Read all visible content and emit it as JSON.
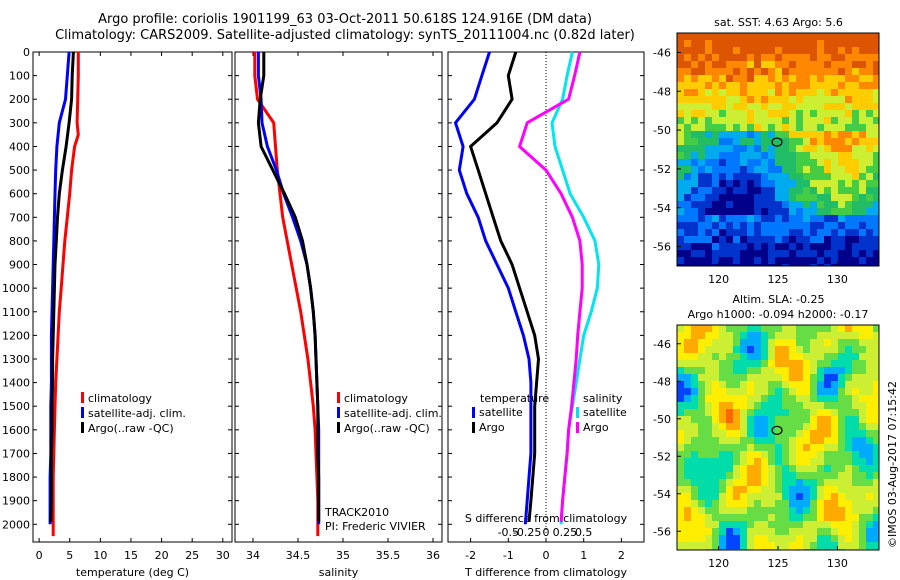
{
  "header": {
    "title_line1": "Argo profile: coriolis 1901199_63 03-Oct-2011 50.618S 124.916E (DM data)",
    "title_line2": "Climatology: CARS2009. Satellite-adjusted climatology: synTS_20111004.nc (0.82d later)"
  },
  "colors": {
    "climatology": "#ff0000",
    "satellite": "#0000ff",
    "argo": "#000000",
    "sal_satellite": "#00e5ee",
    "sal_argo": "#ff00ff"
  },
  "chart_data": [
    {
      "type": "line",
      "name": "temperature",
      "xlabel": "temperature (deg C)",
      "xlim": [
        -1,
        31.5
      ],
      "ylim": [
        2075,
        0
      ],
      "xticks": [
        "0",
        "5",
        "10",
        "15",
        "20",
        "25",
        "30"
      ],
      "yticks": [
        "0",
        "100",
        "200",
        "300",
        "400",
        "500",
        "600",
        "700",
        "800",
        "900",
        "1000",
        "1100",
        "1200",
        "1300",
        "1400",
        "1500",
        "1600",
        "1700",
        "1800",
        "1900",
        "2000"
      ],
      "legend": [
        "climatology",
        "satellite-adj. clim.",
        "Argo(..raw -QC)"
      ],
      "series": [
        {
          "name": "climatology",
          "color": "#ff0000",
          "x": [
            6.4,
            6.4,
            6.3,
            6.2,
            6.4,
            5.8,
            5.3,
            5.0,
            4.6,
            4.2,
            3.9,
            3.6,
            3.3,
            3.1,
            2.9,
            2.7,
            2.6,
            2.5,
            2.4,
            2.3,
            2.3
          ],
          "y": [
            0,
            100,
            200,
            300,
            350,
            400,
            500,
            600,
            700,
            800,
            900,
            1000,
            1100,
            1200,
            1300,
            1400,
            1500,
            1600,
            1700,
            1800,
            2050
          ]
        },
        {
          "name": "satellite-adj. clim.",
          "color": "#0000ff",
          "x": [
            4.9,
            4.6,
            4.3,
            3.3,
            2.9,
            2.7,
            2.6,
            2.5,
            2.4,
            2.3,
            2.2,
            2.1,
            2.0,
            2.0,
            2.0,
            1.9,
            1.9,
            1.9,
            1.8,
            1.8,
            1.8
          ],
          "y": [
            0,
            100,
            200,
            300,
            400,
            500,
            600,
            700,
            800,
            900,
            1000,
            1100,
            1200,
            1300,
            1400,
            1500,
            1600,
            1700,
            1800,
            1900,
            2000
          ]
        },
        {
          "name": "Argo(..raw -QC)",
          "color": "#000000",
          "x": [
            5.6,
            5.4,
            5.3,
            4.9,
            4.4,
            3.8,
            3.3,
            3.0,
            2.8,
            2.6,
            2.5,
            2.4,
            2.3,
            2.2,
            2.2,
            2.1,
            2.1,
            2.0,
            2.0,
            2.0,
            1.9
          ],
          "y": [
            0,
            100,
            200,
            300,
            400,
            500,
            600,
            700,
            800,
            900,
            1000,
            1100,
            1200,
            1300,
            1400,
            1500,
            1600,
            1700,
            1800,
            1900,
            1990
          ]
        }
      ]
    },
    {
      "type": "line",
      "name": "salinity",
      "xlabel": "salinity",
      "xlim": [
        33.8,
        36.1
      ],
      "ylim": [
        2075,
        0
      ],
      "xticks": [
        "34",
        "34.5",
        "35",
        "35.5",
        "36"
      ],
      "legend": [
        "climatology",
        "satellite-adj. clim.",
        "Argo(..raw -QC)"
      ],
      "annotation": [
        "TRACK2010",
        "PI: Frederic VIVIER"
      ],
      "series": [
        {
          "name": "climatology",
          "color": "#ff0000",
          "x": [
            34.02,
            34.02,
            34.05,
            34.23,
            34.25,
            34.27,
            34.3,
            34.33,
            34.38,
            34.43,
            34.48,
            34.53,
            34.57,
            34.61,
            34.64,
            34.67,
            34.69,
            34.7,
            34.71,
            34.72,
            34.72
          ],
          "y": [
            0,
            100,
            200,
            300,
            400,
            500,
            600,
            700,
            800,
            900,
            1000,
            1100,
            1200,
            1300,
            1400,
            1500,
            1600,
            1700,
            1800,
            1900,
            2050
          ]
        },
        {
          "name": "satellite-adj. clim.",
          "color": "#0000ff",
          "x": [
            34.06,
            34.06,
            34.09,
            34.1,
            34.16,
            34.26,
            34.34,
            34.44,
            34.53,
            34.6,
            34.64,
            34.67,
            34.69,
            34.7,
            34.71,
            34.72,
            34.73,
            34.73,
            34.73,
            34.73,
            34.73
          ],
          "y": [
            0,
            100,
            200,
            300,
            400,
            500,
            600,
            700,
            800,
            900,
            1000,
            1100,
            1200,
            1300,
            1400,
            1500,
            1600,
            1700,
            1800,
            1900,
            2000
          ]
        },
        {
          "name": "Argo(..raw -QC)",
          "color": "#000000",
          "x": [
            34.12,
            34.12,
            34.08,
            34.06,
            34.09,
            34.22,
            34.35,
            34.47,
            34.55,
            34.6,
            34.64,
            34.67,
            34.69,
            34.7,
            34.71,
            34.72,
            34.72,
            34.72,
            34.73,
            34.73,
            34.73
          ],
          "y": [
            0,
            100,
            200,
            300,
            400,
            500,
            600,
            700,
            800,
            900,
            1000,
            1100,
            1200,
            1300,
            1400,
            1500,
            1600,
            1700,
            1800,
            1900,
            1990
          ]
        }
      ]
    },
    {
      "type": "line",
      "name": "difference",
      "xlabel": "T difference from climatology",
      "xlabel_top": "S difference from climatology",
      "xlim": [
        -2.6,
        2.6
      ],
      "ylim": [
        2075,
        0
      ],
      "xticks": [
        "-2",
        "-1",
        "0",
        "1",
        "2"
      ],
      "xticks_top": [
        "-0.5",
        "-0.25",
        "0",
        "0.25",
        "0.5"
      ],
      "legend_left_title": "temperature",
      "legend_right_title": "salinity",
      "legend": [
        "satellite",
        "Argo",
        "satellite",
        "Argo"
      ],
      "series": [
        {
          "name": "satellite",
          "group": "temperature",
          "color": "#0000ff",
          "x": [
            -1.5,
            -1.7,
            -1.9,
            -2.4,
            -2.2,
            -2.3,
            -2.1,
            -1.8,
            -1.6,
            -1.3,
            -1.0,
            -0.8,
            -0.6,
            -0.45,
            -0.4,
            -0.4,
            -0.4,
            -0.4,
            -0.45,
            -0.5,
            -0.55
          ],
          "y": [
            0,
            100,
            200,
            300,
            400,
            500,
            600,
            700,
            800,
            900,
            1000,
            1100,
            1200,
            1300,
            1400,
            1500,
            1600,
            1700,
            1800,
            1900,
            2000
          ]
        },
        {
          "name": "Argo",
          "group": "temperature",
          "color": "#000000",
          "x": [
            -0.8,
            -1.0,
            -0.9,
            -1.3,
            -2.0,
            -1.8,
            -1.6,
            -1.4,
            -1.2,
            -0.9,
            -0.7,
            -0.5,
            -0.3,
            -0.2,
            -0.25,
            -0.3,
            -0.3,
            -0.3,
            -0.35,
            -0.4,
            -0.45
          ],
          "y": [
            0,
            100,
            200,
            300,
            400,
            500,
            600,
            700,
            800,
            900,
            1000,
            1100,
            1200,
            1300,
            1400,
            1500,
            1600,
            1700,
            1800,
            1900,
            1990
          ]
        },
        {
          "name": "satellite",
          "group": "salinity",
          "color": "#00e5ee",
          "x": [
            0.35,
            0.28,
            0.22,
            0.08,
            0.12,
            0.22,
            0.32,
            0.5,
            0.65,
            0.7,
            0.68,
            0.6,
            0.5,
            0.45,
            0.4,
            0.35,
            0.3,
            0.28,
            0.25,
            0.22,
            0.2
          ],
          "y": [
            0,
            100,
            200,
            300,
            400,
            500,
            600,
            700,
            800,
            900,
            1000,
            1100,
            1200,
            1300,
            1400,
            1500,
            1600,
            1700,
            1800,
            1900,
            2000
          ]
        },
        {
          "name": "Argo",
          "group": "salinity",
          "color": "#ff00ff",
          "x": [
            0.45,
            0.38,
            0.3,
            -0.25,
            -0.35,
            0.0,
            0.2,
            0.35,
            0.45,
            0.48,
            0.48,
            0.45,
            0.42,
            0.4,
            0.37,
            0.34,
            0.3,
            0.28,
            0.25,
            0.22,
            0.2
          ],
          "y": [
            0,
            100,
            200,
            300,
            400,
            500,
            600,
            700,
            800,
            900,
            1000,
            1100,
            1200,
            1300,
            1400,
            1500,
            1600,
            1700,
            1800,
            1900,
            1990
          ]
        }
      ]
    },
    {
      "type": "heatmap",
      "name": "sst-map",
      "title": "sat. SST: 4.63 Argo: 5.6",
      "xticks": [
        "120",
        "125",
        "130"
      ],
      "yticks": [
        "-46",
        "-48",
        "-50",
        "-52",
        "-54",
        "-56"
      ],
      "xlim": [
        116.5,
        133.5
      ],
      "ylim": [
        -57,
        -45
      ],
      "marker": [
        124.916,
        -50.618
      ],
      "palette": [
        "#00008b",
        "#0033cc",
        "#0077ff",
        "#00aaee",
        "#22bb66",
        "#44cc44",
        "#ccee33",
        "#ffcc00",
        "#ff8800",
        "#dd5500"
      ]
    },
    {
      "type": "heatmap",
      "name": "sla-map",
      "title_line1": "Altim. SLA: -0.25",
      "title_line2": "Argo h1000: -0.094  h2000: -0.17",
      "xticks": [
        "120",
        "125",
        "130"
      ],
      "yticks": [
        "-46",
        "-48",
        "-50",
        "-52",
        "-54",
        "-56"
      ],
      "xlim": [
        116.5,
        133.5
      ],
      "ylim": [
        -57,
        -45
      ],
      "marker": [
        124.916,
        -50.618
      ],
      "palette": [
        "#0044ff",
        "#00aaff",
        "#00ddaa",
        "#66dd44",
        "#ccee33",
        "#ffee00",
        "#ffaa00",
        "#ff6600"
      ]
    }
  ],
  "footer": {
    "credit": "©IMOS 03-Aug-2017 07:15:42"
  }
}
